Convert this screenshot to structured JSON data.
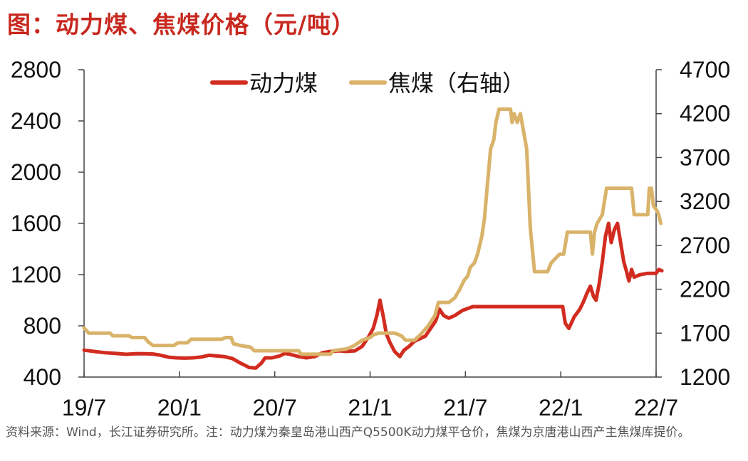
{
  "title": "图：动力煤、焦煤价格（元/吨）",
  "source": "资料来源：Wind，长江证券研究所。注：动力煤为秦皇岛港山西产Q5500K动力煤平仓价，焦煤为京唐港山西产主焦煤库提价。",
  "colors": {
    "thermal": "#d22c20",
    "coking": "#d9b36a",
    "axis": "#444444",
    "text": "#111111",
    "title": "#c8281f"
  },
  "chart_data": {
    "type": "line",
    "title": "图：动力煤、焦煤价格（元/吨）",
    "x_ticks": [
      "19/7",
      "20/1",
      "20/7",
      "21/1",
      "21/7",
      "22/1",
      "22/7"
    ],
    "x_range": [
      "2019-07",
      "2022-07"
    ],
    "y_left": {
      "ticks": [
        400,
        800,
        1200,
        1600,
        2000,
        2400,
        2800
      ],
      "range": [
        400,
        2800
      ]
    },
    "y_right": {
      "ticks": [
        1200,
        1700,
        2200,
        2700,
        3200,
        3700,
        4200,
        4700
      ],
      "range": [
        1200,
        4700
      ]
    },
    "legend": {
      "position": "top-center",
      "entries": [
        "动力煤",
        "焦煤（右轴）"
      ]
    },
    "grid": false,
    "series": [
      {
        "name": "动力煤",
        "axis": "left",
        "points": [
          [
            "2019-07-01",
            610
          ],
          [
            "2019-07-20",
            600
          ],
          [
            "2019-08-10",
            590
          ],
          [
            "2019-08-30",
            585
          ],
          [
            "2019-09-20",
            578
          ],
          [
            "2019-10-10",
            583
          ],
          [
            "2019-10-25",
            582
          ],
          [
            "2019-11-10",
            580
          ],
          [
            "2019-11-25",
            570
          ],
          [
            "2019-12-10",
            555
          ],
          [
            "2019-12-25",
            550
          ],
          [
            "2020-01-10",
            548
          ],
          [
            "2020-01-25",
            550
          ],
          [
            "2020-02-10",
            556
          ],
          [
            "2020-02-25",
            570
          ],
          [
            "2020-03-10",
            565
          ],
          [
            "2020-03-25",
            560
          ],
          [
            "2020-04-10",
            545
          ],
          [
            "2020-04-25",
            510
          ],
          [
            "2020-05-05",
            490
          ],
          [
            "2020-05-12",
            475
          ],
          [
            "2020-05-25",
            470
          ],
          [
            "2020-06-05",
            510
          ],
          [
            "2020-06-12",
            550
          ],
          [
            "2020-06-25",
            550
          ],
          [
            "2020-07-10",
            565
          ],
          [
            "2020-07-20",
            585
          ],
          [
            "2020-08-01",
            575
          ],
          [
            "2020-08-15",
            560
          ],
          [
            "2020-08-30",
            550
          ],
          [
            "2020-09-15",
            560
          ],
          [
            "2020-09-30",
            590
          ],
          [
            "2020-10-15",
            600
          ],
          [
            "2020-11-01",
            605
          ],
          [
            "2020-11-15",
            600
          ],
          [
            "2020-12-01",
            605
          ],
          [
            "2020-12-15",
            640
          ],
          [
            "2020-12-28",
            720
          ],
          [
            "2021-01-05",
            780
          ],
          [
            "2021-01-12",
            880
          ],
          [
            "2021-01-18",
            1000
          ],
          [
            "2021-01-24",
            880
          ],
          [
            "2021-01-30",
            740
          ],
          [
            "2021-02-06",
            670
          ],
          [
            "2021-02-15",
            600
          ],
          [
            "2021-02-25",
            560
          ],
          [
            "2021-03-05",
            610
          ],
          [
            "2021-03-15",
            640
          ],
          [
            "2021-03-25",
            680
          ],
          [
            "2021-04-05",
            700
          ],
          [
            "2021-04-15",
            720
          ],
          [
            "2021-04-25",
            780
          ],
          [
            "2021-05-05",
            840
          ],
          [
            "2021-05-12",
            930
          ],
          [
            "2021-05-20",
            880
          ],
          [
            "2021-05-30",
            860
          ],
          [
            "2021-06-10",
            880
          ],
          [
            "2021-06-25",
            920
          ],
          [
            "2021-07-15",
            950
          ],
          [
            "2021-08-15",
            950
          ],
          [
            "2021-09-15",
            950
          ],
          [
            "2021-10-15",
            950
          ],
          [
            "2021-11-15",
            950
          ],
          [
            "2021-12-15",
            950
          ],
          [
            "2022-01-03",
            950
          ],
          [
            "2022-01-08",
            820
          ],
          [
            "2022-01-15",
            780
          ],
          [
            "2022-01-25",
            870
          ],
          [
            "2022-02-05",
            930
          ],
          [
            "2022-02-12",
            990
          ],
          [
            "2022-02-18",
            1050
          ],
          [
            "2022-02-25",
            1110
          ],
          [
            "2022-03-03",
            1030
          ],
          [
            "2022-03-08",
            1000
          ],
          [
            "2022-03-14",
            1130
          ],
          [
            "2022-03-20",
            1300
          ],
          [
            "2022-03-26",
            1500
          ],
          [
            "2022-04-01",
            1600
          ],
          [
            "2022-04-06",
            1450
          ],
          [
            "2022-04-12",
            1550
          ],
          [
            "2022-04-18",
            1600
          ],
          [
            "2022-04-24",
            1450
          ],
          [
            "2022-04-30",
            1300
          ],
          [
            "2022-05-05",
            1230
          ],
          [
            "2022-05-10",
            1150
          ],
          [
            "2022-05-15",
            1240
          ],
          [
            "2022-05-20",
            1180
          ],
          [
            "2022-06-01",
            1200
          ],
          [
            "2022-06-15",
            1210
          ],
          [
            "2022-07-01",
            1210
          ],
          [
            "2022-07-06",
            1240
          ],
          [
            "2022-07-12",
            1230
          ]
        ]
      },
      {
        "name": "焦煤（右轴）",
        "axis": "right",
        "points": [
          [
            "2019-07-01",
            1760
          ],
          [
            "2019-07-10",
            1700
          ],
          [
            "2019-08-20",
            1700
          ],
          [
            "2019-08-25",
            1670
          ],
          [
            "2019-09-25",
            1670
          ],
          [
            "2019-10-01",
            1650
          ],
          [
            "2019-10-25",
            1650
          ],
          [
            "2019-11-01",
            1600
          ],
          [
            "2019-11-10",
            1560
          ],
          [
            "2019-12-20",
            1560
          ],
          [
            "2019-12-28",
            1590
          ],
          [
            "2020-01-15",
            1590
          ],
          [
            "2020-01-22",
            1630
          ],
          [
            "2020-03-20",
            1630
          ],
          [
            "2020-03-28",
            1650
          ],
          [
            "2020-04-08",
            1650
          ],
          [
            "2020-04-12",
            1580
          ],
          [
            "2020-04-25",
            1560
          ],
          [
            "2020-05-15",
            1540
          ],
          [
            "2020-05-22",
            1500
          ],
          [
            "2020-08-15",
            1500
          ],
          [
            "2020-08-20",
            1460
          ],
          [
            "2020-10-15",
            1460
          ],
          [
            "2020-10-20",
            1500
          ],
          [
            "2020-11-15",
            1520
          ],
          [
            "2020-11-30",
            1560
          ],
          [
            "2020-12-15",
            1620
          ],
          [
            "2020-12-30",
            1650
          ],
          [
            "2021-01-05",
            1680
          ],
          [
            "2021-01-15",
            1700
          ],
          [
            "2021-02-15",
            1700
          ],
          [
            "2021-02-28",
            1670
          ],
          [
            "2021-03-08",
            1620
          ],
          [
            "2021-03-25",
            1620
          ],
          [
            "2021-04-05",
            1680
          ],
          [
            "2021-04-20",
            1780
          ],
          [
            "2021-05-03",
            1900
          ],
          [
            "2021-05-10",
            2050
          ],
          [
            "2021-05-20",
            2050
          ],
          [
            "2021-05-30",
            2050
          ],
          [
            "2021-06-10",
            2100
          ],
          [
            "2021-06-20",
            2200
          ],
          [
            "2021-06-28",
            2300
          ],
          [
            "2021-07-05",
            2350
          ],
          [
            "2021-07-10",
            2450
          ],
          [
            "2021-07-18",
            2500
          ],
          [
            "2021-07-24",
            2600
          ],
          [
            "2021-08-01",
            2800
          ],
          [
            "2021-08-06",
            3000
          ],
          [
            "2021-08-12",
            3400
          ],
          [
            "2021-08-18",
            3800
          ],
          [
            "2021-08-24",
            3900
          ],
          [
            "2021-08-28",
            4100
          ],
          [
            "2021-09-03",
            4250
          ],
          [
            "2021-09-10",
            4250
          ],
          [
            "2021-09-25",
            4250
          ],
          [
            "2021-09-28",
            4100
          ],
          [
            "2021-10-02",
            4200
          ],
          [
            "2021-10-08",
            4100
          ],
          [
            "2021-10-14",
            4200
          ],
          [
            "2021-10-20",
            4000
          ],
          [
            "2021-10-26",
            3800
          ],
          [
            "2021-11-02",
            2900
          ],
          [
            "2021-11-10",
            2400
          ],
          [
            "2021-11-15",
            2400
          ],
          [
            "2021-11-25",
            2400
          ],
          [
            "2021-12-05",
            2400
          ],
          [
            "2021-12-12",
            2500
          ],
          [
            "2021-12-20",
            2550
          ],
          [
            "2021-12-28",
            2600
          ],
          [
            "2022-01-05",
            2600
          ],
          [
            "2022-01-12",
            2850
          ],
          [
            "2022-02-25",
            2850
          ],
          [
            "2022-03-01",
            2600
          ],
          [
            "2022-03-05",
            2850
          ],
          [
            "2022-03-10",
            2950
          ],
          [
            "2022-03-20",
            3050
          ],
          [
            "2022-03-28",
            3350
          ],
          [
            "2022-05-15",
            3350
          ],
          [
            "2022-05-20",
            3050
          ],
          [
            "2022-06-15",
            3050
          ],
          [
            "2022-06-18",
            3350
          ],
          [
            "2022-06-22",
            3350
          ],
          [
            "2022-06-26",
            3150
          ],
          [
            "2022-07-02",
            3100
          ],
          [
            "2022-07-06",
            3050
          ],
          [
            "2022-07-10",
            2950
          ]
        ]
      }
    ]
  }
}
